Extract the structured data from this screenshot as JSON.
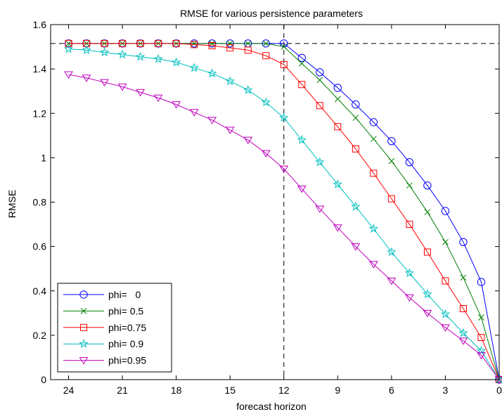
{
  "chart_data": {
    "type": "line",
    "title": "RMSE for various persistence parameters",
    "xlabel": "forecast horizon",
    "ylabel": "RMSE",
    "xlim": [
      25,
      0
    ],
    "ylim": [
      0,
      1.6
    ],
    "x_reversed": true,
    "xticks": [
      24,
      21,
      18,
      15,
      12,
      9,
      6,
      3,
      0
    ],
    "yticks": [
      0,
      0.2,
      0.4,
      0.6,
      0.8,
      1,
      1.2,
      1.4,
      1.6
    ],
    "ytick_labels": [
      "0",
      "0.2",
      "0.4",
      "0.6",
      "0.8",
      "1",
      "1.2",
      "1.4",
      "1.6"
    ],
    "grid": false,
    "legend_position": "bottom-left",
    "x": [
      24,
      23,
      22,
      21,
      20,
      19,
      18,
      17,
      16,
      15,
      14,
      13,
      12,
      11,
      10,
      9,
      8,
      7,
      6,
      5,
      4,
      3,
      2,
      1,
      0
    ],
    "reference_lines": [
      {
        "orientation": "horizontal",
        "value": 1.515,
        "style": "dashed"
      },
      {
        "orientation": "vertical",
        "value": 12,
        "style": "dashed"
      }
    ],
    "series": [
      {
        "name": "phi=   0",
        "color": "#0000ff",
        "marker": "circle",
        "values": [
          1.515,
          1.515,
          1.515,
          1.515,
          1.515,
          1.515,
          1.515,
          1.515,
          1.515,
          1.515,
          1.515,
          1.515,
          1.515,
          1.45,
          1.385,
          1.315,
          1.24,
          1.16,
          1.075,
          0.98,
          0.875,
          0.76,
          0.62,
          0.44,
          0.0
        ]
      },
      {
        "name": "phi= 0.5",
        "color": "#008000",
        "marker": "x",
        "values": [
          1.515,
          1.515,
          1.515,
          1.515,
          1.515,
          1.515,
          1.515,
          1.515,
          1.515,
          1.515,
          1.515,
          1.515,
          1.5,
          1.425,
          1.35,
          1.265,
          1.18,
          1.085,
          0.985,
          0.875,
          0.755,
          0.62,
          0.46,
          0.28,
          0.0
        ]
      },
      {
        "name": "phi=0.75",
        "color": "#ff0000",
        "marker": "square",
        "values": [
          1.515,
          1.515,
          1.515,
          1.515,
          1.515,
          1.515,
          1.515,
          1.51,
          1.505,
          1.495,
          1.485,
          1.46,
          1.42,
          1.33,
          1.235,
          1.14,
          1.04,
          0.93,
          0.815,
          0.7,
          0.575,
          0.445,
          0.32,
          0.19,
          0.0
        ]
      },
      {
        "name": "phi= 0.9",
        "color": "#00bfbf",
        "marker": "star",
        "values": [
          1.49,
          1.485,
          1.475,
          1.465,
          1.455,
          1.445,
          1.43,
          1.405,
          1.38,
          1.345,
          1.305,
          1.25,
          1.18,
          1.08,
          0.98,
          0.88,
          0.78,
          0.68,
          0.575,
          0.48,
          0.385,
          0.295,
          0.21,
          0.13,
          0.0
        ]
      },
      {
        "name": "phi=0.95",
        "color": "#bf00bf",
        "marker": "triangle-down",
        "values": [
          1.375,
          1.36,
          1.34,
          1.32,
          1.295,
          1.27,
          1.24,
          1.205,
          1.17,
          1.125,
          1.08,
          1.02,
          0.95,
          0.86,
          0.77,
          0.685,
          0.6,
          0.52,
          0.445,
          0.37,
          0.3,
          0.235,
          0.175,
          0.11,
          0.0
        ]
      }
    ]
  }
}
